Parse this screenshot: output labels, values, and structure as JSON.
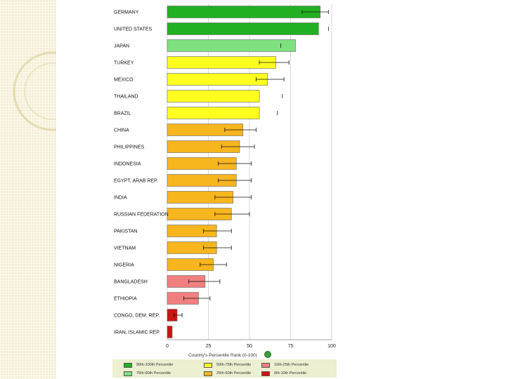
{
  "chart_data": {
    "type": "bar",
    "orientation": "horizontal",
    "xlabel": "Country's Percentile Rank (0-100)",
    "xlim": [
      0,
      100
    ],
    "xticks": [
      "0",
      "25",
      "50",
      "75",
      "100"
    ],
    "grid": true,
    "categories": [
      "GERMANY",
      "UNITED STATES",
      "JAPAN",
      "TURKEY",
      "MEXICO",
      "THAILAND",
      "BRAZIL",
      "CHINA",
      "PHILIPPINES",
      "INDONESIA",
      "EGYPT, ARAB REP.",
      "INDIA",
      "RUSSIAN FEDERATION",
      "PAKISTAN",
      "VIETNAM",
      "NIGERIA",
      "BANGLADESH",
      "ETHIOPIA",
      "CONGO, DEM. REP.",
      "IRAN, ISLAMIC REP."
    ],
    "values": [
      93,
      92,
      78,
      66,
      61,
      56,
      56,
      46,
      44,
      42,
      42,
      40,
      39,
      30,
      30,
      28,
      23,
      19,
      6,
      3
    ],
    "error_low": [
      82,
      null,
      69,
      56,
      54,
      70,
      67,
      35,
      33,
      31,
      31,
      29,
      29,
      22,
      22,
      20,
      13,
      10,
      4,
      null
    ],
    "error_high": [
      98,
      98,
      null,
      74,
      71,
      null,
      null,
      54,
      53,
      51,
      51,
      51,
      50,
      39,
      39,
      36,
      32,
      26,
      9,
      null
    ],
    "bar_group": [
      "top",
      "top",
      "upper-mid",
      "mid",
      "mid",
      "mid",
      "mid",
      "low-mid",
      "low-mid",
      "low-mid",
      "low-mid",
      "low-mid",
      "low-mid",
      "low-mid",
      "low-mid",
      "low-mid",
      "low",
      "low",
      "bottom",
      "bottom"
    ],
    "colors": {
      "top": "#21b021",
      "upper-mid": "#7fe07f",
      "mid": "#ffff1f",
      "low-mid": "#f7b51e",
      "low": "#f08080",
      "bottom": "#cc1414"
    },
    "legend": {
      "placement": "bottom",
      "items": [
        {
          "label": "90th-100th Percentile",
          "group": "top"
        },
        {
          "label": "50th-75th Percentile",
          "group": "mid"
        },
        {
          "label": "10th-25th Percentile",
          "group": "low"
        },
        {
          "label": "75th-90th Percentile",
          "group": "upper-mid"
        },
        {
          "label": "25th-50th Percentile",
          "group": "low-mid"
        },
        {
          "label": "0th-10th Percentile",
          "group": "bottom"
        }
      ]
    }
  }
}
